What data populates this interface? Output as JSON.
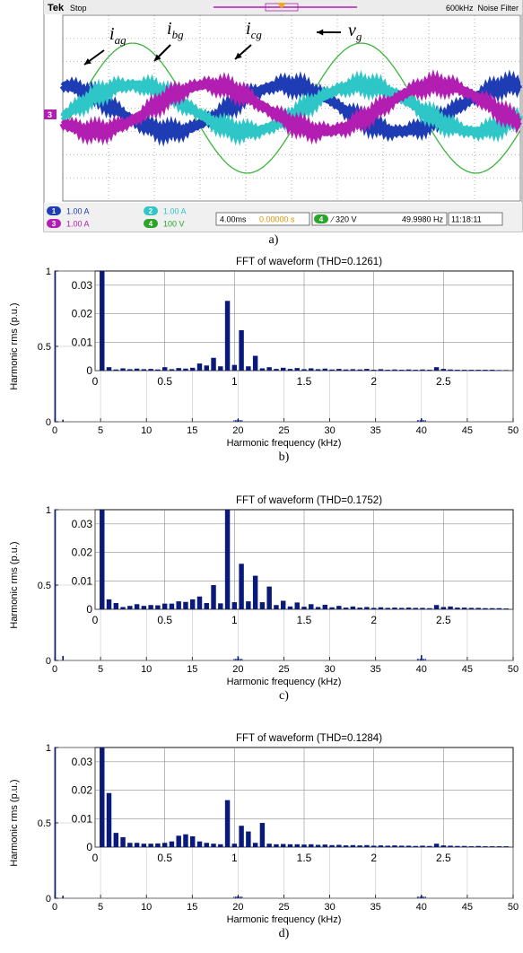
{
  "scope": {
    "brand": "Tek",
    "run_state": "Stop",
    "top_right": "600kHz  Noise Filter",
    "grid": true,
    "waveform_labels": [
      {
        "main": "i",
        "sub": "ag"
      },
      {
        "main": "i",
        "sub": "bg"
      },
      {
        "main": "i",
        "sub": "cg"
      },
      {
        "main": "v",
        "sub": "g"
      }
    ],
    "channel_marker": "3",
    "channels": [
      {
        "num": "1",
        "scale": "1.00 A",
        "color": "#1e3cb4"
      },
      {
        "num": "2",
        "scale": "1.00 A",
        "color": "#2ec6c6"
      },
      {
        "num": "3",
        "scale": "1.00 A",
        "color": "#b21db2"
      },
      {
        "num": "4",
        "scale": "100 V",
        "color": "#2aa52a"
      }
    ],
    "timebase": "4.00ms",
    "delay": "0.00000 s",
    "trigger_channel": "4",
    "trigger": "∕ 320 V",
    "frequency": "49.9980 Hz",
    "time": "11:18:11",
    "colors": {
      "ia": "#1e3cb4",
      "ib": "#2ec6c6",
      "ic": "#b21db2",
      "v": "#3cb43c",
      "screen_bg": "#ffffff",
      "grid": "#777777"
    },
    "wave_period_ms": 20,
    "current_amplitude_div": 1.0,
    "voltage_amplitude_div": 2.8
  },
  "captions": [
    "a)",
    "b)",
    "c)",
    "d)"
  ],
  "chart_data": [
    {
      "type": "bar",
      "title": "FFT of waveform (THD=0.1261)",
      "xlabel": "Harmonic frequency (kHz)",
      "ylabel": "Harmonic rms (p.u.)",
      "xlim": [
        0,
        50
      ],
      "ylim": [
        0,
        1
      ],
      "xticks": [
        "0",
        "5",
        "10",
        "15",
        "20",
        "25",
        "30",
        "35",
        "40",
        "45",
        "50"
      ],
      "yticks": [
        "0",
        "0.5",
        "1"
      ],
      "main_peaks": [
        {
          "x": 0.05,
          "y": 1.0
        },
        {
          "x": 0.9,
          "y": 0.014
        },
        {
          "x": 20.0,
          "y": 0.018
        },
        {
          "x": 40.0,
          "y": 0.022
        }
      ],
      "inset": {
        "xlim": [
          0,
          3
        ],
        "ylim": [
          0,
          0.035
        ],
        "xticks": [
          "0",
          "0.5",
          "1",
          "1.5",
          "2",
          "2.5"
        ],
        "yticks": [
          "0",
          "0.01",
          "0.02",
          "0.03"
        ],
        "x": [
          0.05,
          0.1,
          0.15,
          0.2,
          0.25,
          0.3,
          0.35,
          0.4,
          0.45,
          0.5,
          0.55,
          0.6,
          0.65,
          0.7,
          0.75,
          0.8,
          0.85,
          0.9,
          0.95,
          1.0,
          1.05,
          1.1,
          1.15,
          1.2,
          1.25,
          1.3,
          1.35,
          1.4,
          1.45,
          1.5,
          1.55,
          1.6,
          1.65,
          1.7,
          1.75,
          1.8,
          1.85,
          1.9,
          1.95,
          2.0,
          2.05,
          2.1,
          2.15,
          2.2,
          2.25,
          2.3,
          2.35,
          2.4,
          2.45,
          2.5,
          2.55,
          2.6,
          2.65,
          2.7,
          2.75,
          2.8,
          2.85,
          2.9,
          2.95
        ],
        "values": [
          0.035,
          0.0012,
          0.0004,
          0.0008,
          0.0005,
          0.0007,
          0.0005,
          0.0006,
          0.0004,
          0.0012,
          0.0005,
          0.0009,
          0.0007,
          0.001,
          0.0025,
          0.0018,
          0.0045,
          0.0015,
          0.0245,
          0.002,
          0.0142,
          0.0015,
          0.0052,
          0.0008,
          0.0012,
          0.0006,
          0.001,
          0.0006,
          0.0009,
          0.0005,
          0.0008,
          0.0005,
          0.0007,
          0.0004,
          0.0006,
          0.0004,
          0.0005,
          0.0004,
          0.0006,
          0.0003,
          0.0005,
          0.0003,
          0.0004,
          0.0003,
          0.0004,
          0.0003,
          0.0004,
          0.0003,
          0.0012,
          0.0006,
          0.0004,
          0.0003,
          0.0003,
          0.0003,
          0.0003,
          0.0003,
          0.0003,
          0.0002,
          0.0002
        ]
      }
    },
    {
      "type": "bar",
      "title": "FFT of waveform (THD=0.1752)",
      "xlabel": "Harmonic frequency (kHz)",
      "ylabel": "Harmonic rms (p.u.)",
      "xlim": [
        0,
        50
      ],
      "ylim": [
        0,
        1
      ],
      "xticks": [
        "0",
        "5",
        "10",
        "15",
        "20",
        "25",
        "30",
        "35",
        "40",
        "45",
        "50"
      ],
      "yticks": [
        "0",
        "0.5",
        "1"
      ],
      "main_peaks": [
        {
          "x": 0.05,
          "y": 1.0
        },
        {
          "x": 0.9,
          "y": 0.03
        },
        {
          "x": 20.0,
          "y": 0.028
        },
        {
          "x": 40.0,
          "y": 0.035
        }
      ],
      "inset": {
        "xlim": [
          0,
          3
        ],
        "ylim": [
          0,
          0.035
        ],
        "xticks": [
          "0",
          "0.5",
          "1",
          "1.5",
          "2",
          "2.5"
        ],
        "yticks": [
          "0",
          "0.01",
          "0.02",
          "0.03"
        ],
        "x": [
          0.05,
          0.1,
          0.15,
          0.2,
          0.25,
          0.3,
          0.35,
          0.4,
          0.45,
          0.5,
          0.55,
          0.6,
          0.65,
          0.7,
          0.75,
          0.8,
          0.85,
          0.9,
          0.95,
          1.0,
          1.05,
          1.1,
          1.15,
          1.2,
          1.25,
          1.3,
          1.35,
          1.4,
          1.45,
          1.5,
          1.55,
          1.6,
          1.65,
          1.7,
          1.75,
          1.8,
          1.85,
          1.9,
          1.95,
          2.0,
          2.05,
          2.1,
          2.15,
          2.2,
          2.25,
          2.3,
          2.35,
          2.4,
          2.45,
          2.5,
          2.55,
          2.6,
          2.65,
          2.7,
          2.75,
          2.8,
          2.85,
          2.9,
          2.95
        ],
        "values": [
          0.035,
          0.0035,
          0.0022,
          0.0008,
          0.0012,
          0.0018,
          0.0012,
          0.0015,
          0.0014,
          0.002,
          0.002,
          0.0028,
          0.0026,
          0.0035,
          0.0045,
          0.0022,
          0.0085,
          0.0021,
          0.035,
          0.0025,
          0.016,
          0.0028,
          0.0118,
          0.0025,
          0.008,
          0.0015,
          0.003,
          0.001,
          0.0024,
          0.0009,
          0.0018,
          0.0008,
          0.0016,
          0.0007,
          0.0012,
          0.0006,
          0.001,
          0.0006,
          0.0008,
          0.0005,
          0.0007,
          0.0005,
          0.0006,
          0.0005,
          0.0006,
          0.0005,
          0.0005,
          0.0004,
          0.0015,
          0.0008,
          0.001,
          0.0006,
          0.0006,
          0.0005,
          0.0005,
          0.0004,
          0.0004,
          0.0004,
          0.0003
        ]
      }
    },
    {
      "type": "bar",
      "title": "FFT of waveform (THD=0.1284)",
      "xlabel": "Harmonic frequency (kHz)",
      "ylabel": "Harmonic rms (p.u.)",
      "xlim": [
        0,
        50
      ],
      "ylim": [
        0,
        1
      ],
      "xticks": [
        "0",
        "5",
        "10",
        "15",
        "20",
        "25",
        "30",
        "35",
        "40",
        "45",
        "50"
      ],
      "yticks": [
        "0",
        "0.5",
        "1"
      ],
      "main_peaks": [
        {
          "x": 0.05,
          "y": 1.0
        },
        {
          "x": 0.9,
          "y": 0.017
        },
        {
          "x": 20.0,
          "y": 0.016
        },
        {
          "x": 40.0,
          "y": 0.02
        }
      ],
      "inset": {
        "xlim": [
          0,
          3
        ],
        "ylim": [
          0,
          0.035
        ],
        "xticks": [
          "0",
          "0.5",
          "1",
          "1.5",
          "2",
          "2.5"
        ],
        "yticks": [
          "0",
          "0.01",
          "0.02",
          "0.03"
        ],
        "x": [
          0.05,
          0.1,
          0.15,
          0.2,
          0.25,
          0.3,
          0.35,
          0.4,
          0.45,
          0.5,
          0.55,
          0.6,
          0.65,
          0.7,
          0.75,
          0.8,
          0.85,
          0.9,
          0.95,
          1.0,
          1.05,
          1.1,
          1.15,
          1.2,
          1.25,
          1.3,
          1.35,
          1.4,
          1.45,
          1.5,
          1.55,
          1.6,
          1.65,
          1.7,
          1.75,
          1.8,
          1.85,
          1.9,
          1.95,
          2.0,
          2.05,
          2.1,
          2.15,
          2.2,
          2.25,
          2.3,
          2.35,
          2.4,
          2.45,
          2.5,
          2.55,
          2.6,
          2.65,
          2.7,
          2.75,
          2.8,
          2.85,
          2.9,
          2.95
        ],
        "values": [
          0.035,
          0.019,
          0.005,
          0.0035,
          0.0015,
          0.0015,
          0.0012,
          0.0012,
          0.0013,
          0.0015,
          0.002,
          0.004,
          0.0045,
          0.0038,
          0.002,
          0.0015,
          0.0012,
          0.001,
          0.0165,
          0.0012,
          0.0075,
          0.0055,
          0.0015,
          0.0085,
          0.0012,
          0.001,
          0.0011,
          0.001,
          0.001,
          0.0009,
          0.001,
          0.0008,
          0.0009,
          0.0007,
          0.0008,
          0.0006,
          0.0007,
          0.0006,
          0.0007,
          0.0005,
          0.0006,
          0.0005,
          0.0006,
          0.0005,
          0.0005,
          0.0004,
          0.0005,
          0.0004,
          0.0012,
          0.0006,
          0.0005,
          0.0004,
          0.0004,
          0.0003,
          0.0004,
          0.0003,
          0.0003,
          0.0003,
          0.0003
        ]
      }
    }
  ]
}
